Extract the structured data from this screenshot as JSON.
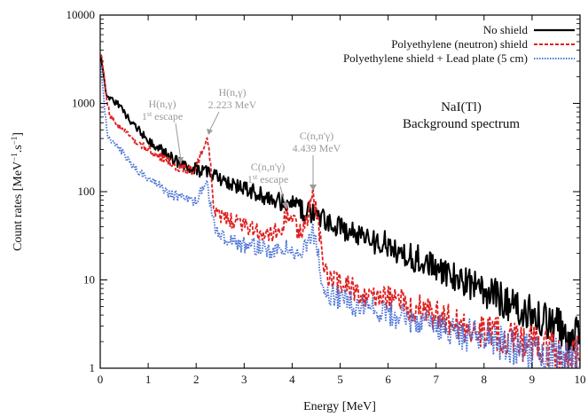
{
  "chart_data": {
    "type": "line",
    "title": "NaI(Tl)",
    "subtitle": "Background spectrum",
    "xlabel": "Energy [MeV]",
    "ylabel": "Count rates [MeV-1.s-1]",
    "ylabel_parts": [
      "Count rates [MeV",
      "−1",
      ".s",
      "−1",
      "]"
    ],
    "xlim": [
      0,
      10
    ],
    "ylim": [
      1,
      10000
    ],
    "yscale": "log",
    "grid": false,
    "legend_position": "top-right",
    "x_ticks": [
      0,
      1,
      2,
      3,
      4,
      5,
      6,
      7,
      8,
      9,
      10
    ],
    "x_tick_labels": [
      "0",
      "1",
      "2",
      "3",
      "4",
      "5",
      "6",
      "7",
      "8",
      "9",
      "10"
    ],
    "y_ticks": [
      1,
      10,
      100,
      1000,
      10000
    ],
    "y_tick_labels": [
      "1",
      "10",
      "100",
      "1000",
      "10000"
    ],
    "series": [
      {
        "name": "No shield",
        "color": "#000000",
        "style": "solid",
        "x": [
          0.02,
          0.05,
          0.1,
          0.15,
          0.2,
          0.3,
          0.4,
          0.45,
          0.5,
          0.6,
          0.8,
          1.0,
          1.2,
          1.4,
          1.6,
          1.7,
          1.8,
          2.0,
          2.2,
          2.4,
          2.6,
          2.8,
          3.0,
          3.4,
          3.8,
          4.0,
          4.2,
          4.4,
          4.6,
          5.0,
          5.5,
          6.0,
          6.5,
          7.0,
          7.5,
          8.0,
          8.5,
          9.0,
          9.5,
          10.0
        ],
        "values": [
          3500,
          2500,
          1500,
          1200,
          1150,
          1050,
          950,
          900,
          800,
          650,
          500,
          390,
          320,
          260,
          220,
          210,
          200,
          180,
          165,
          150,
          135,
          120,
          110,
          90,
          75,
          70,
          62,
          55,
          50,
          40,
          30,
          25,
          18,
          14,
          10,
          7.5,
          5.5,
          4,
          3,
          2.2
        ]
      },
      {
        "name": "Polyethylene (neutron) shield",
        "color": "#e02020",
        "style": "dashed",
        "x": [
          0.02,
          0.05,
          0.1,
          0.15,
          0.2,
          0.3,
          0.4,
          0.6,
          0.8,
          1.0,
          1.2,
          1.4,
          1.6,
          1.7,
          1.8,
          1.9,
          2.0,
          2.1,
          2.2,
          2.25,
          2.3,
          2.35,
          2.4,
          2.6,
          2.8,
          3.0,
          3.2,
          3.4,
          3.6,
          3.8,
          3.9,
          4.0,
          4.1,
          4.2,
          4.3,
          4.4,
          4.45,
          4.5,
          4.6,
          4.7,
          4.8,
          5.0,
          5.5,
          6.0,
          6.5,
          7.0,
          7.5,
          8.0,
          8.5,
          9.0,
          9.5,
          10.0
        ],
        "values": [
          3800,
          2800,
          1600,
          1000,
          750,
          600,
          550,
          420,
          350,
          300,
          260,
          230,
          190,
          185,
          175,
          170,
          180,
          260,
          420,
          380,
          200,
          80,
          55,
          50,
          45,
          42,
          38,
          34,
          33,
          40,
          58,
          45,
          38,
          36,
          45,
          85,
          90,
          60,
          25,
          12,
          10,
          9,
          7,
          6,
          5,
          4,
          3.2,
          2.6,
          2.2,
          1.8,
          1.5,
          1.3
        ]
      },
      {
        "name": "Polyethylene shield + Lead plate (5 cm)",
        "color": "#4a72d6",
        "style": "dotted",
        "x": [
          0.02,
          0.05,
          0.1,
          0.15,
          0.2,
          0.3,
          0.4,
          0.5,
          0.6,
          0.8,
          1.0,
          1.2,
          1.4,
          1.6,
          1.8,
          2.0,
          2.1,
          2.2,
          2.25,
          2.3,
          2.4,
          2.6,
          2.8,
          3.0,
          3.4,
          3.8,
          3.9,
          4.0,
          4.2,
          4.4,
          4.45,
          4.5,
          4.6,
          4.7,
          4.8,
          5.0,
          5.5,
          6.0,
          6.5,
          7.0,
          7.5,
          8.0,
          8.5,
          9.0,
          9.5,
          10.0
        ],
        "values": [
          2500,
          1500,
          800,
          450,
          380,
          350,
          320,
          260,
          220,
          170,
          140,
          120,
          100,
          90,
          80,
          80,
          95,
          120,
          110,
          70,
          35,
          30,
          27,
          25,
          22,
          20,
          26,
          22,
          20,
          30,
          35,
          25,
          12,
          8,
          7,
          6,
          5,
          4.2,
          3.5,
          3,
          2.5,
          2.1,
          1.8,
          1.5,
          1.3,
          1.2
        ]
      }
    ],
    "annotations": [
      {
        "line1": "H(n,γ)",
        "line2_sup": "st",
        "line2_pre": "1",
        "line2_post": " escape",
        "x": 1.75,
        "y": 210
      },
      {
        "line1": "H(n,γ)",
        "line2": "2.223 MeV",
        "x": 2.2,
        "y": 430
      },
      {
        "line1": "C(n,n'γ)",
        "line2_sup": "st",
        "line2_pre": "1",
        "line2_post": " escape",
        "x": 3.93,
        "y": 60
      },
      {
        "line1": "C(n,n'γ)",
        "line2": "4.439 MeV",
        "x": 4.42,
        "y": 92
      }
    ]
  }
}
